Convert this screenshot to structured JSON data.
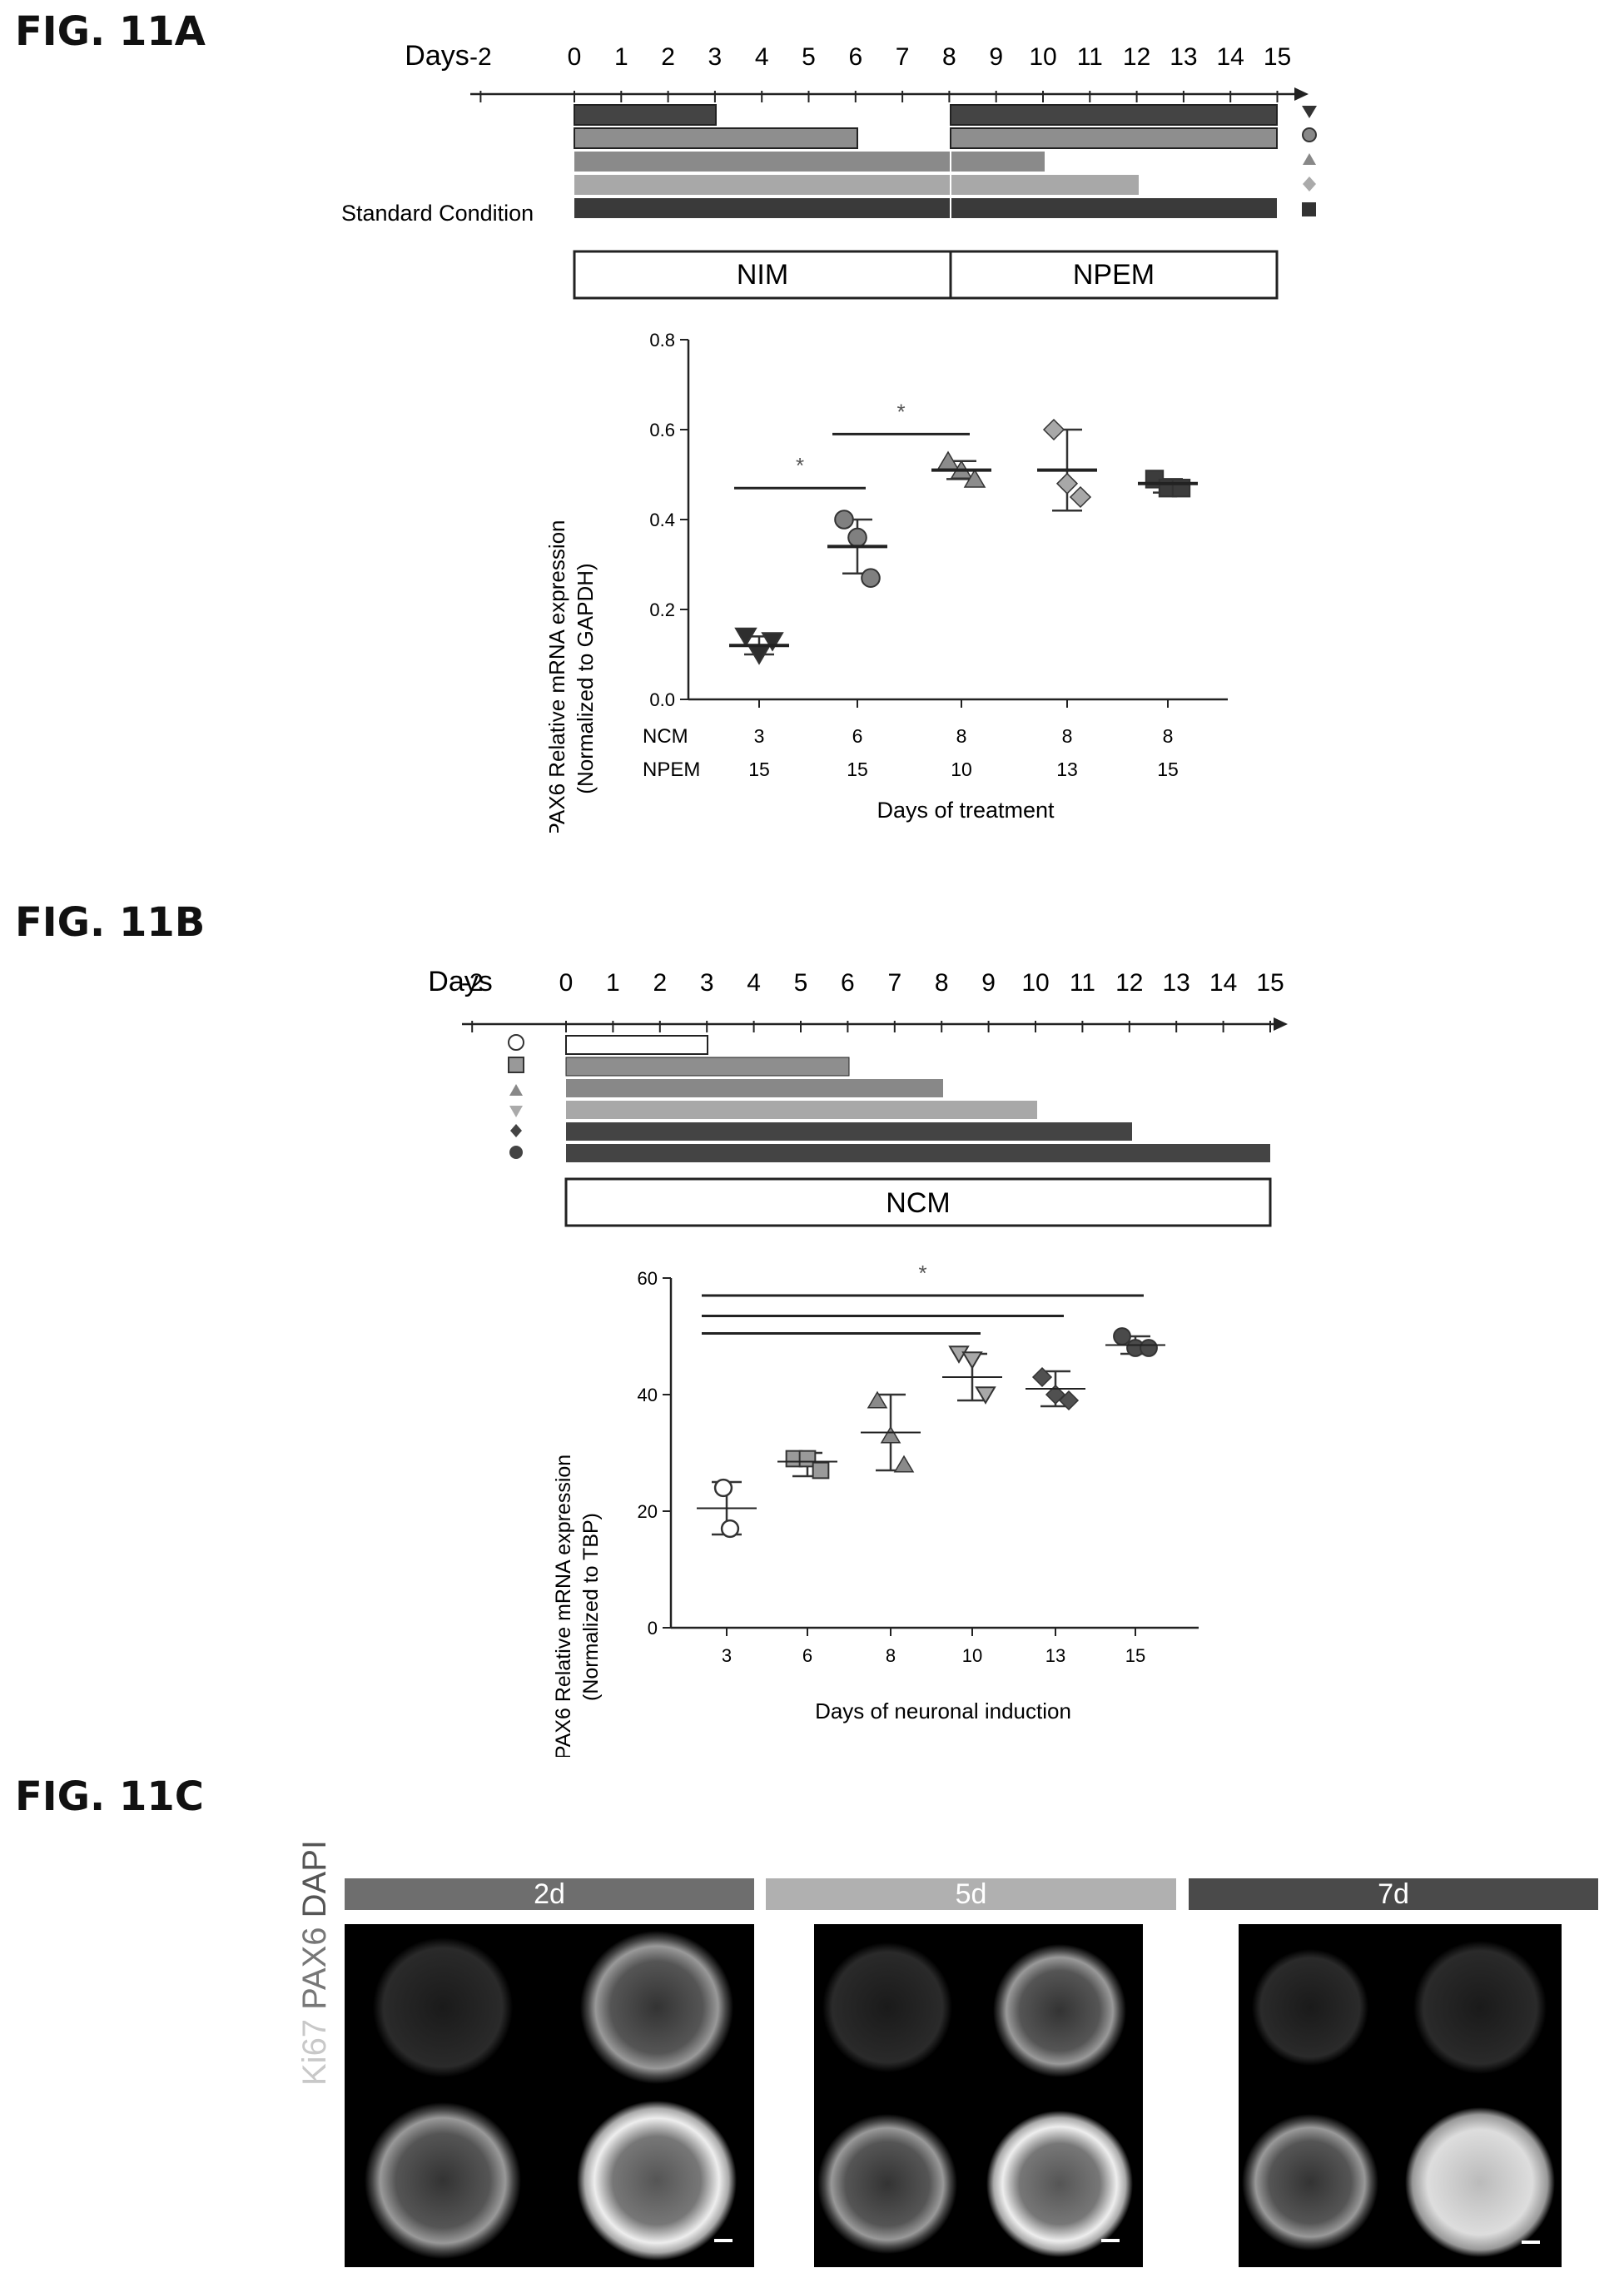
{
  "fig_a": {
    "label": "FIG. 11A",
    "timeline": {
      "days_label": "Days",
      "ticks": [
        -2,
        0,
        1,
        2,
        3,
        4,
        5,
        6,
        7,
        8,
        9,
        10,
        11,
        12,
        13,
        14,
        15
      ],
      "standard_condition_label": "Standard Condition",
      "media": [
        "NIM",
        "NPEM"
      ]
    },
    "chart_data": {
      "type": "scatter",
      "ylabel_line1": "PAX6 Relative mRNA expression",
      "ylabel_line2": "(Normalized to GAPDH)",
      "xlabel": "Days of treatment",
      "ylim": [
        0,
        0.8
      ],
      "yticks": [
        "0.0",
        "0.2",
        "0.4",
        "0.6",
        "0.8"
      ],
      "row_labels": [
        "NCM",
        "NPEM"
      ],
      "ncm": [
        "3",
        "6",
        "8",
        "8",
        "8"
      ],
      "npem": [
        "15",
        "15",
        "10",
        "13",
        "15"
      ],
      "groups": [
        {
          "points": [
            0.14,
            0.1,
            0.13
          ],
          "mean": 0.12,
          "sd_low": 0.1,
          "sd_high": 0.14,
          "marker": "triangle-down",
          "color": "#2e2e2e"
        },
        {
          "points": [
            0.4,
            0.36,
            0.27
          ],
          "mean": 0.34,
          "sd_low": 0.28,
          "sd_high": 0.4,
          "marker": "circle",
          "color": "#808080"
        },
        {
          "points": [
            0.53,
            0.51,
            0.49
          ],
          "mean": 0.51,
          "sd_low": 0.49,
          "sd_high": 0.53,
          "marker": "triangle-up",
          "color": "#8c8c8c"
        },
        {
          "points": [
            0.6,
            0.48,
            0.45
          ],
          "mean": 0.51,
          "sd_low": 0.42,
          "sd_high": 0.6,
          "marker": "diamond",
          "color": "#a8a8a8"
        },
        {
          "points": [
            0.49,
            0.47,
            0.47
          ],
          "mean": 0.48,
          "sd_low": 0.46,
          "sd_high": 0.49,
          "marker": "square",
          "color": "#3c3c3c"
        }
      ],
      "significance": [
        {
          "from": 0,
          "to": 1,
          "y": 0.47,
          "label": "*"
        },
        {
          "from": 1,
          "to": 2,
          "y": 0.59,
          "label": "*"
        }
      ]
    }
  },
  "fig_b": {
    "label": "FIG. 11B",
    "timeline": {
      "days_label": "Days",
      "ticks": [
        -2,
        0,
        1,
        2,
        3,
        4,
        5,
        6,
        7,
        8,
        9,
        10,
        11,
        12,
        13,
        14,
        15
      ],
      "media": [
        "NCM"
      ]
    },
    "chart_data": {
      "type": "scatter",
      "ylabel_line1": "PAX6 Relative mRNA expression",
      "ylabel_line2": "(Normalized to TBP)",
      "xlabel": "Days of neuronal induction",
      "ylim": [
        0,
        60
      ],
      "yticks": [
        "0",
        "20",
        "40",
        "60"
      ],
      "categories": [
        "3",
        "6",
        "8",
        "10",
        "13",
        "15"
      ],
      "groups": [
        {
          "points": [
            24,
            17
          ],
          "mean": 20.5,
          "sd_low": 16,
          "sd_high": 25,
          "marker": "circle-open",
          "color": "#ffffff"
        },
        {
          "points": [
            29,
            29,
            27
          ],
          "mean": 28.5,
          "sd_low": 26,
          "sd_high": 30,
          "marker": "square",
          "color": "#9a9a9a"
        },
        {
          "points": [
            39,
            33,
            28
          ],
          "mean": 33.5,
          "sd_low": 27,
          "sd_high": 40,
          "marker": "triangle-up",
          "color": "#8a8a8a"
        },
        {
          "points": [
            47,
            46,
            40
          ],
          "mean": 43,
          "sd_low": 39,
          "sd_high": 47,
          "marker": "triangle-down",
          "color": "#a8a8a8"
        },
        {
          "points": [
            43,
            40,
            39
          ],
          "mean": 41,
          "sd_low": 38,
          "sd_high": 44,
          "marker": "diamond",
          "color": "#505050"
        },
        {
          "points": [
            50,
            48,
            48
          ],
          "mean": 48.5,
          "sd_low": 47,
          "sd_high": 50,
          "marker": "circle",
          "color": "#4a4a4a"
        }
      ],
      "significance": [
        {
          "from": 0,
          "to": 3,
          "y": 50.5,
          "label": ""
        },
        {
          "from": 0,
          "to": 4,
          "y": 53.5,
          "label": ""
        },
        {
          "from": 0,
          "to": 5,
          "y": 57,
          "label": "*"
        }
      ]
    }
  },
  "fig_c": {
    "label": "FIG. 11C",
    "stain_ki67": "Ki67",
    "stain_pax6": "PAX6",
    "stain_dapi": "DAPI",
    "conditions": [
      "2d",
      "5d",
      "7d"
    ],
    "header_colors": [
      "#6e6e6e",
      "#b0b0b0",
      "#4a4a4a"
    ]
  }
}
